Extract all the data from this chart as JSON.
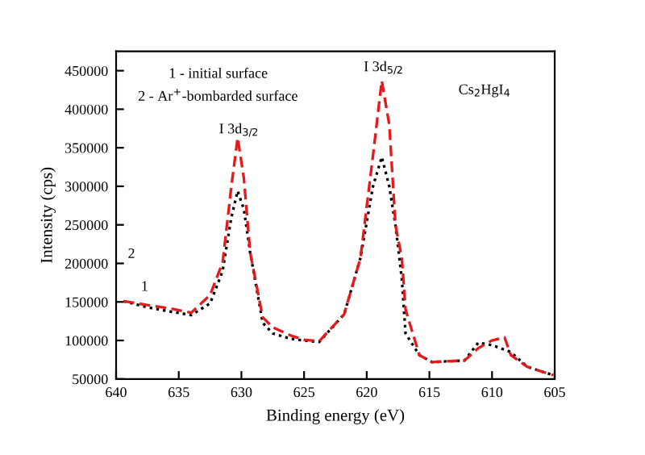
{
  "chart_data": {
    "type": "line",
    "xlabel": "Binding energy (eV)",
    "ylabel": "Intensity (cps)",
    "x": [
      639.4,
      637.5,
      635.5,
      634,
      632.5,
      631.5,
      630.8,
      630.3,
      629.8,
      629.3,
      628.3,
      627.5,
      626,
      625,
      623.8,
      621.8,
      620.5,
      619.5,
      618.8,
      618.2,
      617.7,
      617.2,
      616.9,
      615.8,
      614.8,
      612.2,
      611.1,
      610,
      609,
      608.5,
      607.2,
      605.9,
      605.1
    ],
    "series": [
      {
        "color": "#000000",
        "line_style": "dotted",
        "values": [
          151000,
          143000,
          137000,
          133000,
          148000,
          190000,
          260000,
          294000,
          270000,
          214000,
          123000,
          109000,
          102000,
          100000,
          98000,
          134000,
          207000,
          300000,
          338000,
          300000,
          249000,
          180000,
          109000,
          81000,
          72000,
          74000,
          97000,
          94000,
          88000,
          85000,
          66000,
          59000,
          55000
        ]
      },
      {
        "color": "#e41a1c",
        "line_style": "dashed",
        "values": [
          151000,
          146000,
          141000,
          136000,
          159000,
          201000,
          300000,
          363000,
          310000,
          214000,
          130000,
          117000,
          106000,
          101000,
          99000,
          134000,
          207000,
          340000,
          437000,
          380000,
          249000,
          207000,
          140000,
          81000,
          72000,
          74000,
          90000,
          100000,
          104000,
          81000,
          66000,
          59000,
          55000
        ]
      }
    ],
    "xlim": [
      640,
      605
    ],
    "xticks": [
      640,
      635,
      630,
      625,
      620,
      615,
      610,
      605
    ],
    "ylim": [
      50000,
      475000
    ],
    "yticks": [
      50000,
      100000,
      150000,
      200000,
      250000,
      300000,
      350000,
      400000,
      450000
    ],
    "grid": false,
    "legend": false,
    "annotations": [
      "1 - initial surface",
      "2 - Ar$^{+}$-bombarded surface",
      "I 3d$_{3/2}$",
      "I 3d$_{5/2}$",
      "Cs$_{2}$HgI$_{4}$",
      "1",
      "2"
    ]
  }
}
